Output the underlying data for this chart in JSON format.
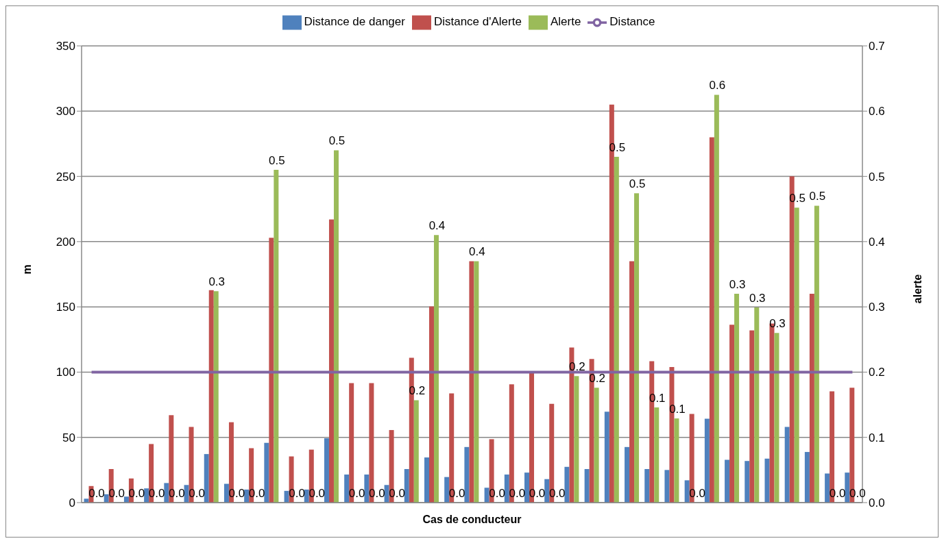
{
  "chart_data": {
    "type": "bar",
    "xlabel": "Cas de conducteur",
    "ylabel": "m",
    "y2label": "alerte",
    "categories": [
      null,
      null,
      null,
      null,
      null,
      null,
      null,
      null,
      null,
      null,
      null,
      null,
      null,
      null,
      null,
      null,
      null,
      null,
      null,
      null,
      null,
      null,
      null,
      null,
      null,
      null,
      null,
      null,
      null,
      null,
      null,
      null,
      null,
      null,
      null,
      null,
      null,
      null,
      null
    ],
    "series": [
      {
        "name": "Distance de danger",
        "color": "#4f81bd",
        "values": [
          3,
          6.4,
          4.6,
          10.9,
          15,
          13.5,
          37.2,
          14.4,
          10,
          45.8,
          9,
          10,
          49.3,
          21.5,
          21.5,
          13.5,
          25.7,
          34.6,
          19.6,
          42.6,
          11.4,
          21.5,
          23,
          18,
          27.4,
          25.7,
          69.6,
          42.6,
          25.7,
          25,
          17.1,
          64.3,
          32.8,
          31.9,
          33.7,
          58,
          38.8,
          22.3,
          23
        ]
      },
      {
        "name": "Distance d'Alerte",
        "color": "#c0504d",
        "values": [
          12.7,
          25.7,
          18.5,
          44.9,
          67,
          58,
          162.8,
          61.6,
          41.7,
          203,
          35.4,
          40.6,
          217,
          91.6,
          91.6,
          55.6,
          111,
          150.4,
          83.7,
          185,
          48.6,
          90.7,
          99.6,
          75.7,
          118.8,
          110,
          305,
          185,
          108.3,
          103.9,
          67.9,
          280,
          136.3,
          132,
          137.2,
          250,
          160,
          85.3,
          88
        ]
      },
      {
        "name": "Alerte",
        "color": "#9bbb59",
        "axis": "y2",
        "values": [
          0,
          0,
          0,
          0,
          0,
          0,
          0.324,
          0,
          0,
          0.51,
          0,
          0,
          0.54,
          0,
          0,
          0,
          0.157,
          0.41,
          0,
          0.37,
          0,
          0,
          0,
          0,
          0.194,
          0.176,
          0.53,
          0.474,
          0.146,
          0.129,
          0,
          0.625,
          0.32,
          0.299,
          0.26,
          0.452,
          0.455,
          0,
          0
        ],
        "value_labels": [
          "0.0",
          "0.0",
          "0.0",
          "0.0",
          "0.0",
          "0.0",
          "0.3",
          "0.0",
          "0.0",
          "0.5",
          "0.0",
          "0.0",
          "0.5",
          "0.0",
          "0.0",
          "0.0",
          "0.2",
          "0.4",
          "0.0",
          "0.4",
          "0.0",
          "0.0",
          "0.0",
          "0.0",
          "0.2",
          "0.2",
          "0.5",
          "0.5",
          "0.1",
          "0.1",
          "0.0",
          "0.6",
          "0.3",
          "0.3",
          "0.3",
          "0.5",
          "0.5",
          "0.0",
          "0.0"
        ]
      },
      {
        "name": "Distance",
        "color": "#8064a2",
        "type": "line",
        "marker": "none",
        "values": [
          100,
          100,
          100,
          100,
          100,
          100,
          100,
          100,
          100,
          100,
          100,
          100,
          100,
          100,
          100,
          100,
          100,
          100,
          100,
          100,
          100,
          100,
          100,
          100,
          100,
          100,
          100,
          100,
          100,
          100,
          100,
          100,
          100,
          100,
          100,
          100,
          100,
          100,
          100
        ]
      }
    ],
    "ylim": [
      0,
      350
    ],
    "yticks": [
      0,
      50,
      100,
      150,
      200,
      250,
      300,
      350
    ],
    "y2lim": [
      0,
      0.7
    ],
    "y2ticks": [
      {
        "value": 0,
        "label": "0.0"
      },
      {
        "value": 0.1,
        "label": "0.1"
      },
      {
        "value": 0.2,
        "label": "0.2"
      },
      {
        "value": 0.3,
        "label": "0.3"
      },
      {
        "value": 0.4,
        "label": "0.4"
      },
      {
        "value": 0.5,
        "label": "0.5"
      },
      {
        "value": 0.6,
        "label": "0.6"
      },
      {
        "value": 0.7,
        "label": "0.7"
      }
    ],
    "tick_labels": "y",
    "grid": "y",
    "legend": "top"
  }
}
